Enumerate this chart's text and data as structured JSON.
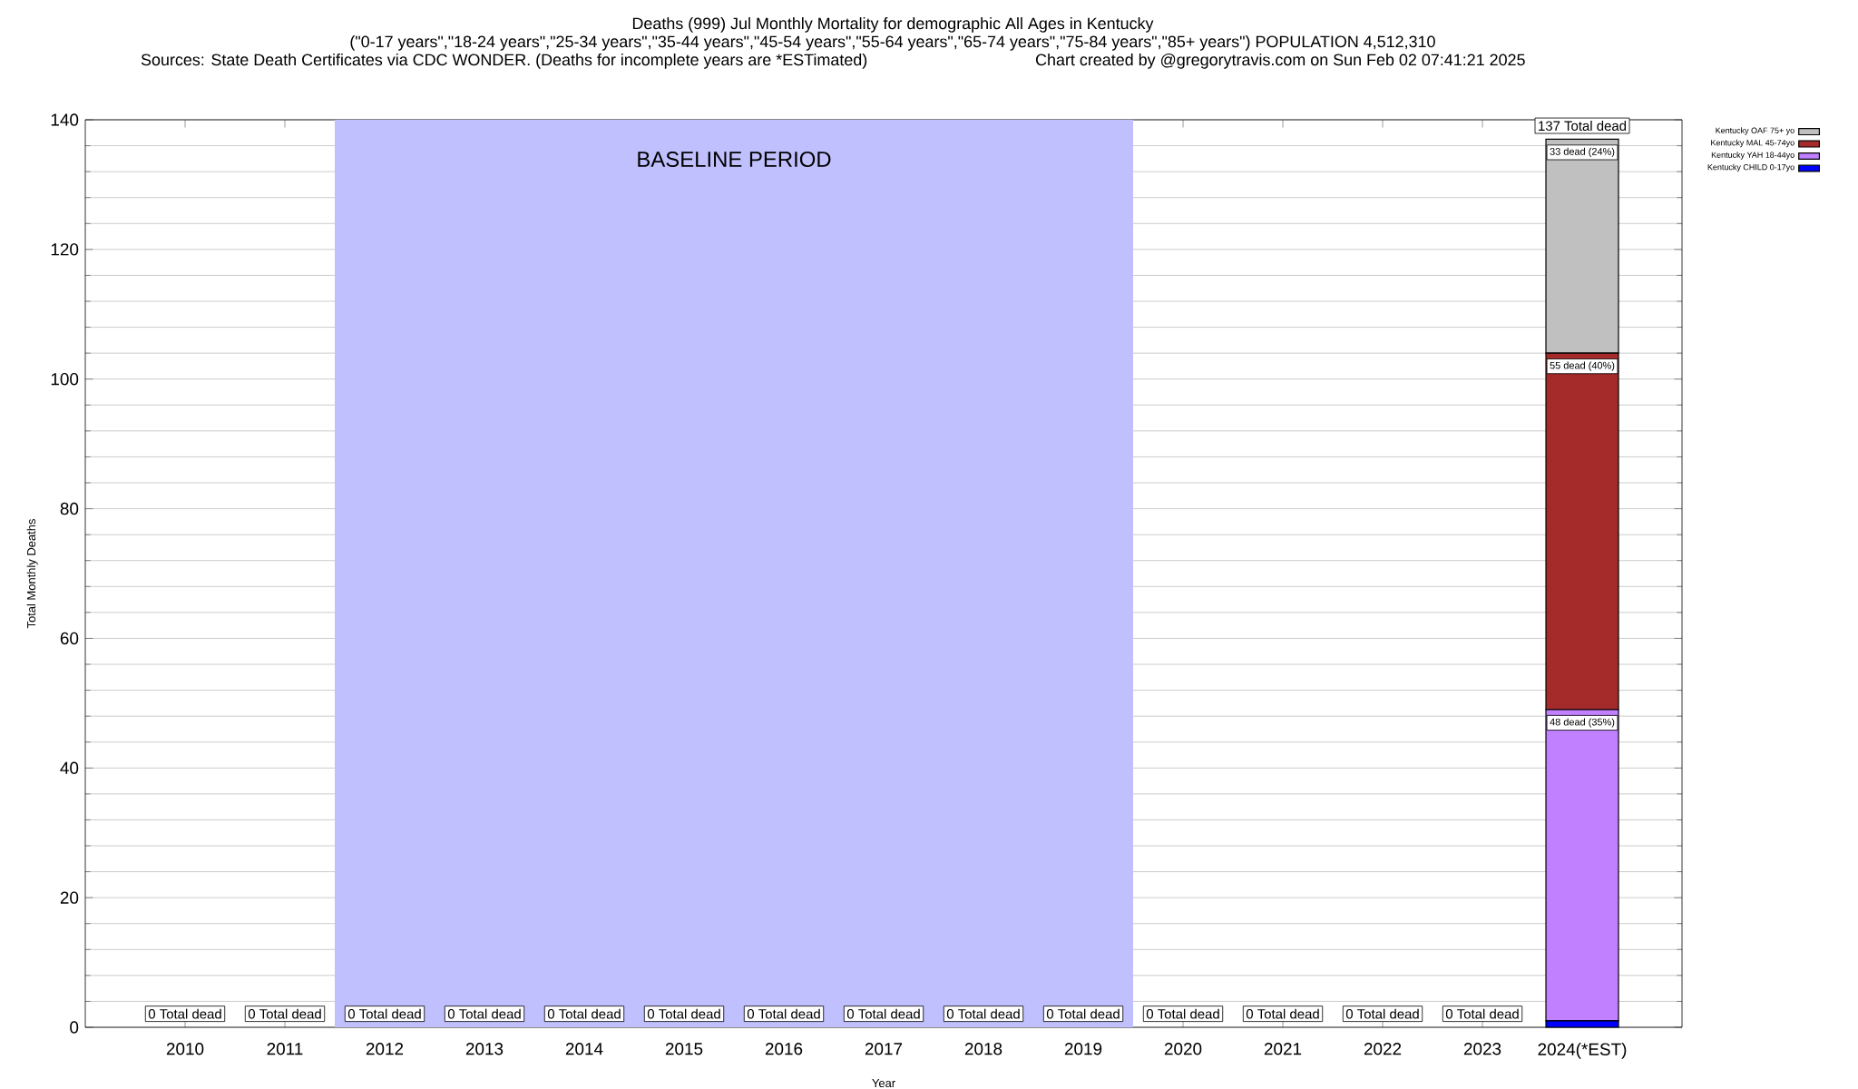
{
  "chart_data": {
    "type": "bar",
    "stacked": true,
    "title": "Deaths (999) Jul Monthly Mortality for demographic All Ages in Kentucky",
    "subtitle": "(\"0-17 years\",\"18-24 years\",\"25-34 years\",\"35-44 years\",\"45-54 years\",\"55-64 years\",\"65-74 years\",\"75-84 years\",\"85+ years\") POPULATION 4,512,310",
    "annotations": [
      "Sources: State Death Certificates via CDC WONDER. (Deaths for incomplete years are *ESTimated)",
      "Chart created by @gregorytravis.com on Sun Feb 02 07:41:21 2025"
    ],
    "xlabel": "Year",
    "ylabel": "Total Monthly Deaths",
    "categories": [
      "2010",
      "2011",
      "2012",
      "2013",
      "2014",
      "2015",
      "2016",
      "2017",
      "2018",
      "2019",
      "2020",
      "2021",
      "2022",
      "2023",
      "2024(*EST)"
    ],
    "series": [
      {
        "name": "Kentucky CHILD 0-17yo",
        "color": "#0000ff",
        "values": [
          0,
          0,
          0,
          0,
          0,
          0,
          0,
          0,
          0,
          0,
          0,
          0,
          0,
          0,
          1
        ]
      },
      {
        "name": "Kentucky YAH 18-44yo",
        "color": "#c080ff",
        "values": [
          0,
          0,
          0,
          0,
          0,
          0,
          0,
          0,
          0,
          0,
          0,
          0,
          0,
          0,
          48
        ],
        "value_labels": [
          null,
          null,
          null,
          null,
          null,
          null,
          null,
          null,
          null,
          null,
          null,
          null,
          null,
          null,
          "48 dead (35%)"
        ]
      },
      {
        "name": "Kentucky MAL 45-74yo",
        "color": "#a52a2a",
        "values": [
          0,
          0,
          0,
          0,
          0,
          0,
          0,
          0,
          0,
          0,
          0,
          0,
          0,
          0,
          55
        ],
        "value_labels": [
          null,
          null,
          null,
          null,
          null,
          null,
          null,
          null,
          null,
          null,
          null,
          null,
          null,
          null,
          "55 dead (40%)"
        ]
      },
      {
        "name": "Kentucky OAF 75+ yo",
        "color": "#c0c0c0",
        "values": [
          0,
          0,
          0,
          0,
          0,
          0,
          0,
          0,
          0,
          0,
          0,
          0,
          0,
          0,
          33
        ],
        "value_labels": [
          null,
          null,
          null,
          null,
          null,
          null,
          null,
          null,
          null,
          null,
          null,
          null,
          null,
          null,
          "33 dead (24%)"
        ]
      }
    ],
    "totals": [
      "0 Total dead",
      "0 Total dead",
      "0 Total dead",
      "0 Total dead",
      "0 Total dead",
      "0 Total dead",
      "0 Total dead",
      "0 Total dead",
      "0 Total dead",
      "0 Total dead",
      "0 Total dead",
      "0 Total dead",
      "0 Total dead",
      "0 Total dead",
      "137 Total dead"
    ],
    "bands": [
      {
        "axis": "x",
        "from": "2012",
        "to": "2019",
        "label": "BASELINE PERIOD",
        "color": "#c0c0ff"
      }
    ],
    "ylim": [
      0,
      140
    ],
    "yticks": [
      0,
      20,
      40,
      60,
      80,
      100,
      120,
      140
    ],
    "grid": "y",
    "legend": "top right"
  }
}
